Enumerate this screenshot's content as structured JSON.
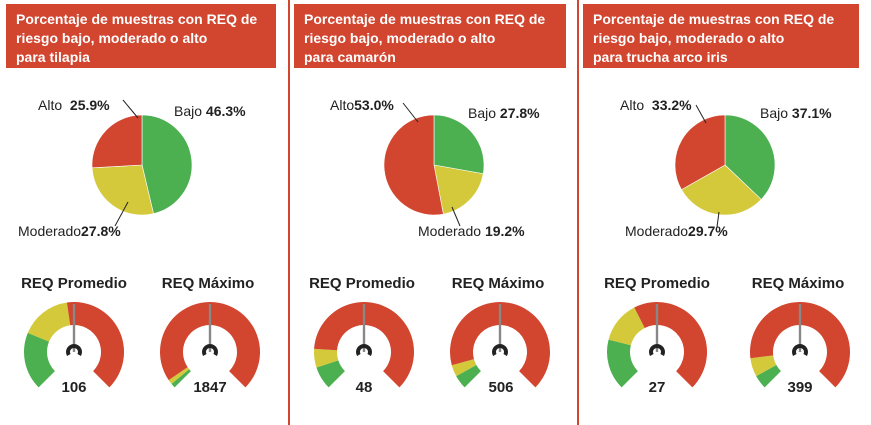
{
  "colors": {
    "bajo": "#4caf50",
    "moderado": "#d4c93a",
    "alto": "#d2452f",
    "header": "#d2452f",
    "needle": "#222222"
  },
  "panels": [
    {
      "title_lines": [
        "Porcentaje de muestras con REQ de",
        "riesgo bajo, moderado o alto",
        "para tilapia"
      ],
      "gauge_titles": [
        "REQ Promedio",
        "REQ Máximo"
      ],
      "gauge_values": [
        "106",
        "1847"
      ]
    },
    {
      "title_lines": [
        "Porcentaje de muestras con REQ de",
        "riesgo bajo, moderado o alto",
        "para camarón"
      ],
      "gauge_titles": [
        "REQ Promedio",
        "REQ Máximo"
      ],
      "gauge_values": [
        "48",
        "506"
      ]
    },
    {
      "title_lines": [
        "Porcentaje de muestras con REQ de",
        "riesgo bajo, moderado o alto",
        "para trucha arco iris"
      ],
      "gauge_titles": [
        "REQ Promedio",
        "REQ Máximo"
      ],
      "gauge_values": [
        "27",
        "399"
      ]
    }
  ],
  "chart_data": [
    {
      "type": "pie",
      "title": "Porcentaje de muestras con REQ de riesgo bajo, moderado o alto para tilapia",
      "slices": [
        {
          "label": "Bajo",
          "value": 46.3,
          "text": "46.3%"
        },
        {
          "label": "Moderado",
          "value": 27.8,
          "text": "27.8%"
        },
        {
          "label": "Alto",
          "value": 25.9,
          "text": "25.9%"
        }
      ]
    },
    {
      "type": "pie",
      "title": "Porcentaje de muestras con REQ de riesgo bajo, moderado o alto para camarón",
      "slices": [
        {
          "label": "Bajo",
          "value": 27.8,
          "text": "27.8%"
        },
        {
          "label": "Moderado",
          "value": 19.2,
          "text": "19.2%"
        },
        {
          "label": "Alto",
          "value": 53.0,
          "text": "53.0%"
        }
      ]
    },
    {
      "type": "pie",
      "title": "Porcentaje de muestras con REQ de riesgo bajo, moderado o alto para trucha arco iris",
      "slices": [
        {
          "label": "Bajo",
          "value": 37.1,
          "text": "37.1%"
        },
        {
          "label": "Moderado",
          "value": 29.7,
          "text": "29.7%"
        },
        {
          "label": "Alto",
          "value": 33.2,
          "text": "33.2%"
        }
      ]
    },
    {
      "type": "gauge",
      "title": "REQ Promedio",
      "species": "tilapia",
      "value": 106,
      "needle_fraction": 0.5,
      "bands": [
        {
          "level": "bajo",
          "fraction": 0.25
        },
        {
          "level": "moderado",
          "fraction": 0.22
        },
        {
          "level": "alto",
          "fraction": 0.53
        }
      ]
    },
    {
      "type": "gauge",
      "title": "REQ Máximo",
      "species": "tilapia",
      "value": 1847,
      "needle_fraction": 0.5,
      "bands": [
        {
          "level": "bajo",
          "fraction": 0.02
        },
        {
          "level": "moderado",
          "fraction": 0.02
        },
        {
          "level": "alto",
          "fraction": 0.96
        }
      ]
    },
    {
      "type": "gauge",
      "title": "REQ Promedio",
      "species": "camarón",
      "value": 48,
      "needle_fraction": 0.5,
      "bands": [
        {
          "level": "bajo",
          "fraction": 0.1
        },
        {
          "level": "moderado",
          "fraction": 0.08
        },
        {
          "level": "alto",
          "fraction": 0.82
        }
      ]
    },
    {
      "type": "gauge",
      "title": "REQ Máximo",
      "species": "camarón",
      "value": 506,
      "needle_fraction": 0.5,
      "bands": [
        {
          "level": "bajo",
          "fraction": 0.06
        },
        {
          "level": "moderado",
          "fraction": 0.05
        },
        {
          "level": "alto",
          "fraction": 0.89
        }
      ]
    },
    {
      "type": "gauge",
      "title": "REQ Promedio",
      "species": "trucha arco iris",
      "value": 27,
      "needle_fraction": 0.5,
      "bands": [
        {
          "level": "bajo",
          "fraction": 0.22
        },
        {
          "level": "moderado",
          "fraction": 0.18
        },
        {
          "level": "alto",
          "fraction": 0.6
        }
      ]
    },
    {
      "type": "gauge",
      "title": "REQ Máximo",
      "species": "trucha arco iris",
      "value": 399,
      "needle_fraction": 0.5,
      "bands": [
        {
          "level": "bajo",
          "fraction": 0.06
        },
        {
          "level": "moderado",
          "fraction": 0.08
        },
        {
          "level": "alto",
          "fraction": 0.86
        }
      ]
    }
  ]
}
